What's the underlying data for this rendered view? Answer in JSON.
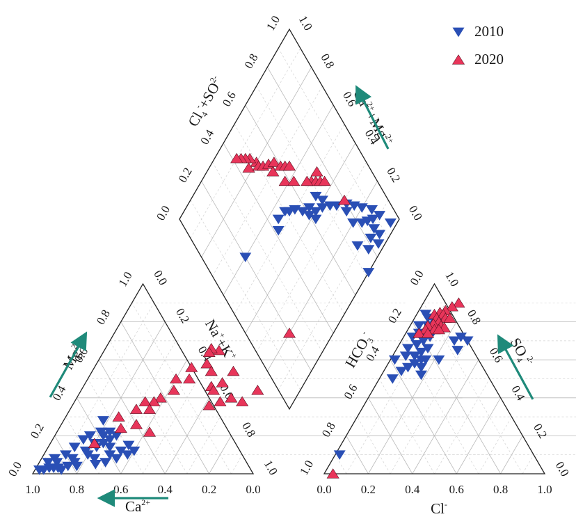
{
  "chart_data": {
    "type": "scatter",
    "subtype": "piper-diagram",
    "legend": {
      "placement": "top-right",
      "entries": [
        {
          "label": "2010",
          "marker": "triangle-down",
          "color": "#2a4fb5"
        },
        {
          "label": "2020",
          "marker": "triangle-up",
          "color": "#e8355a"
        }
      ]
    },
    "colors": {
      "s2010": "#2a4fb5",
      "s2020": "#e8355a",
      "arrow": "#1f8a7a",
      "outline": "#222222"
    },
    "grid": true,
    "cation_triangle": {
      "left_ticks": [
        "0.0",
        "0.2",
        "0.4",
        "0.6",
        "0.8",
        "1.0"
      ],
      "right_ticks": [
        "0.0",
        "0.2",
        "0.4",
        "0.6",
        "0.8",
        "1.0"
      ],
      "bottom_ticks": [
        "1.0",
        "0.8",
        "0.6",
        "0.4",
        "0.2",
        "0.0"
      ],
      "left_label": {
        "main": "Mg",
        "sup": "2+"
      },
      "right_label": {
        "main": "Na",
        "sup": "+",
        "mid": "+K",
        "sup2": "+"
      },
      "bottom_label": {
        "main": "Ca",
        "sup": "2+"
      }
    },
    "anion_triangle": {
      "left_ticks": [
        "1.0",
        "0.8",
        "0.6",
        "0.4",
        "0.2",
        "0.0"
      ],
      "right_ticks": [
        "1.0",
        "0.8",
        "0.6",
        "0.4",
        "0.2",
        "0.0"
      ],
      "bottom_ticks": [
        "0.0",
        "0.2",
        "0.4",
        "0.6",
        "0.8",
        "1.0"
      ],
      "left_label": {
        "main": "HCO",
        "sub": "3",
        "sup": "-"
      },
      "right_label": {
        "main": "SO",
        "sub": "4",
        "sup": "2-"
      },
      "bottom_label": {
        "main": "Cl",
        "sup": "-"
      }
    },
    "diamond": {
      "left_ticks": [
        "0.0",
        "0.2",
        "0.4",
        "0.6",
        "0.8",
        "1.0"
      ],
      "right_ticks": [
        "0.0",
        "0.2",
        "0.4",
        "0.6",
        "0.8",
        "1.0"
      ],
      "left_label": {
        "main": "Cl",
        "sup": "-",
        "mid": "+SO",
        "sub": "4",
        "sup2": "2-"
      },
      "right_label": {
        "main": "Ca",
        "sup": "2+",
        "mid": "+Mg",
        "sup2": "2+"
      }
    },
    "series": [
      {
        "name": "2010",
        "cation": [
          [
            0.4,
            0.12
          ],
          [
            0.38,
            0.1
          ],
          [
            0.34,
            0.08
          ],
          [
            0.3,
            0.06
          ],
          [
            0.26,
            0.05
          ],
          [
            0.36,
            0.15
          ],
          [
            0.34,
            0.12
          ],
          [
            0.3,
            0.1
          ],
          [
            0.28,
            0.14
          ],
          [
            0.24,
            0.08
          ],
          [
            0.28,
            0.2
          ],
          [
            0.26,
            0.18
          ],
          [
            0.22,
            0.14
          ],
          [
            0.2,
            0.1
          ],
          [
            0.2,
            0.16
          ],
          [
            0.18,
            0.12
          ],
          [
            0.16,
            0.06
          ],
          [
            0.14,
            0.08
          ],
          [
            0.22,
            0.2
          ],
          [
            0.2,
            0.22
          ],
          [
            0.16,
            0.2
          ],
          [
            0.14,
            0.18
          ],
          [
            0.12,
            0.14
          ],
          [
            0.1,
            0.1
          ],
          [
            0.18,
            0.28
          ],
          [
            0.24,
            0.22
          ],
          [
            0.06,
            0.08
          ],
          [
            0.08,
            0.06
          ],
          [
            0.04,
            0.06
          ],
          [
            0.12,
            0.02
          ],
          [
            0.1,
            0.03
          ],
          [
            0.08,
            0.03
          ],
          [
            0.06,
            0.03
          ],
          [
            0.04,
            0.02
          ],
          [
            0.02,
            0.02
          ],
          [
            0.24,
            0.16
          ],
          [
            0.18,
            0.04
          ],
          [
            0.14,
            0.04
          ]
        ],
        "anion": [
          [
            0.04,
            0.84
          ],
          [
            0.1,
            0.8
          ],
          [
            0.08,
            0.78
          ],
          [
            0.06,
            0.74
          ],
          [
            0.12,
            0.72
          ],
          [
            0.1,
            0.7
          ],
          [
            0.08,
            0.68
          ],
          [
            0.14,
            0.66
          ],
          [
            0.12,
            0.64
          ],
          [
            0.1,
            0.62
          ],
          [
            0.16,
            0.6
          ],
          [
            0.14,
            0.6
          ],
          [
            0.12,
            0.58
          ],
          [
            0.1,
            0.56
          ],
          [
            0.16,
            0.56
          ],
          [
            0.22,
            0.6
          ],
          [
            0.08,
            0.54
          ],
          [
            0.06,
            0.5
          ],
          [
            0.18,
            0.52
          ],
          [
            0.08,
            0.72
          ],
          [
            0.06,
            0.82
          ],
          [
            0.04,
            0.78
          ],
          [
            0.26,
            0.72
          ],
          [
            0.24,
            0.7
          ],
          [
            0.3,
            0.7
          ],
          [
            0.28,
            0.65
          ],
          [
            0.02,
            0.6
          ],
          [
            0.05,
            0.66
          ],
          [
            0.06,
            0.62
          ],
          [
            0.1,
            0.76
          ],
          [
            0.12,
            0.8
          ],
          [
            0.04,
            0.72
          ],
          [
            0.02,
            0.1
          ]
        ],
        "diamond": [
          [
            0.75,
            0.32
          ],
          [
            0.72,
            0.35
          ],
          [
            0.68,
            0.38
          ],
          [
            0.7,
            0.4
          ],
          [
            0.62,
            0.44
          ],
          [
            0.58,
            0.46
          ],
          [
            0.6,
            0.42
          ],
          [
            0.64,
            0.4
          ],
          [
            0.55,
            0.5
          ],
          [
            0.52,
            0.52
          ],
          [
            0.5,
            0.54
          ],
          [
            0.45,
            0.55
          ],
          [
            0.42,
            0.52
          ],
          [
            0.78,
            0.2
          ],
          [
            0.82,
            0.16
          ],
          [
            0.85,
            0.14
          ],
          [
            0.88,
            0.12
          ],
          [
            0.86,
            0.2
          ],
          [
            0.83,
            0.24
          ],
          [
            0.8,
            0.28
          ],
          [
            0.9,
            0.15
          ],
          [
            0.92,
            0.1
          ],
          [
            0.87,
            0.05
          ],
          [
            0.84,
            0.03
          ],
          [
            0.78,
            0.06
          ],
          [
            0.74,
            0.12
          ],
          [
            0.82,
            0.08
          ],
          [
            0.86,
            0.09
          ],
          [
            0.2,
            0.6
          ],
          [
            0.72,
            0.0
          ],
          [
            0.95,
            0.03
          ],
          [
            0.78,
            0.26
          ],
          [
            0.68,
            0.44
          ],
          [
            0.62,
            0.38
          ]
        ]
      },
      {
        "name": "2020",
        "cation": [
          [
            0.52,
            0.65
          ],
          [
            0.5,
            0.58
          ],
          [
            0.54,
            0.54
          ],
          [
            0.58,
            0.46
          ],
          [
            0.6,
            0.44
          ],
          [
            0.62,
            0.36
          ],
          [
            0.66,
            0.38
          ],
          [
            0.7,
            0.4
          ],
          [
            0.76,
            0.38
          ],
          [
            0.8,
            0.44
          ],
          [
            0.64,
            0.54
          ],
          [
            0.62,
            0.48
          ],
          [
            0.48,
            0.66
          ],
          [
            0.44,
            0.56
          ],
          [
            0.4,
            0.5
          ],
          [
            0.46,
            0.5
          ],
          [
            0.42,
            0.44
          ],
          [
            0.38,
            0.4
          ],
          [
            0.36,
            0.38
          ],
          [
            0.32,
            0.38
          ],
          [
            0.3,
            0.34
          ],
          [
            0.36,
            0.34
          ],
          [
            0.28,
            0.24
          ],
          [
            0.24,
            0.3
          ],
          [
            0.48,
            0.64
          ],
          [
            0.34,
            0.26
          ],
          [
            0.42,
            0.22
          ],
          [
            0.2,
            0.16
          ]
        ],
        "anion": [
          [
            0.16,
            0.9
          ],
          [
            0.14,
            0.88
          ],
          [
            0.12,
            0.86
          ],
          [
            0.1,
            0.85
          ],
          [
            0.08,
            0.84
          ],
          [
            0.12,
            0.84
          ],
          [
            0.14,
            0.82
          ],
          [
            0.16,
            0.82
          ],
          [
            0.1,
            0.82
          ],
          [
            0.12,
            0.8
          ],
          [
            0.14,
            0.78
          ],
          [
            0.1,
            0.79
          ],
          [
            0.08,
            0.78
          ],
          [
            0.16,
            0.77
          ],
          [
            0.12,
            0.76
          ],
          [
            0.14,
            0.76
          ],
          [
            0.08,
            0.76
          ],
          [
            0.06,
            0.74
          ],
          [
            0.1,
            0.74
          ],
          [
            0.04,
            0.0
          ]
        ],
        "diamond": [
          [
            0.5,
            0.8
          ],
          [
            0.48,
            0.84
          ],
          [
            0.46,
            0.86
          ],
          [
            0.44,
            0.88
          ],
          [
            0.42,
            0.9
          ],
          [
            0.45,
            0.82
          ],
          [
            0.5,
            0.78
          ],
          [
            0.52,
            0.76
          ],
          [
            0.55,
            0.74
          ],
          [
            0.58,
            0.72
          ],
          [
            0.55,
            0.7
          ],
          [
            0.6,
            0.68
          ],
          [
            0.62,
            0.66
          ],
          [
            0.64,
            0.64
          ],
          [
            0.58,
            0.62
          ],
          [
            0.62,
            0.58
          ],
          [
            0.7,
            0.5
          ],
          [
            0.72,
            0.48
          ],
          [
            0.74,
            0.46
          ],
          [
            0.76,
            0.44
          ],
          [
            0.75,
            0.5
          ],
          [
            0.2,
            0.2
          ],
          [
            0.8,
            0.3
          ],
          [
            0.68,
            0.52
          ]
        ]
      }
    ]
  }
}
